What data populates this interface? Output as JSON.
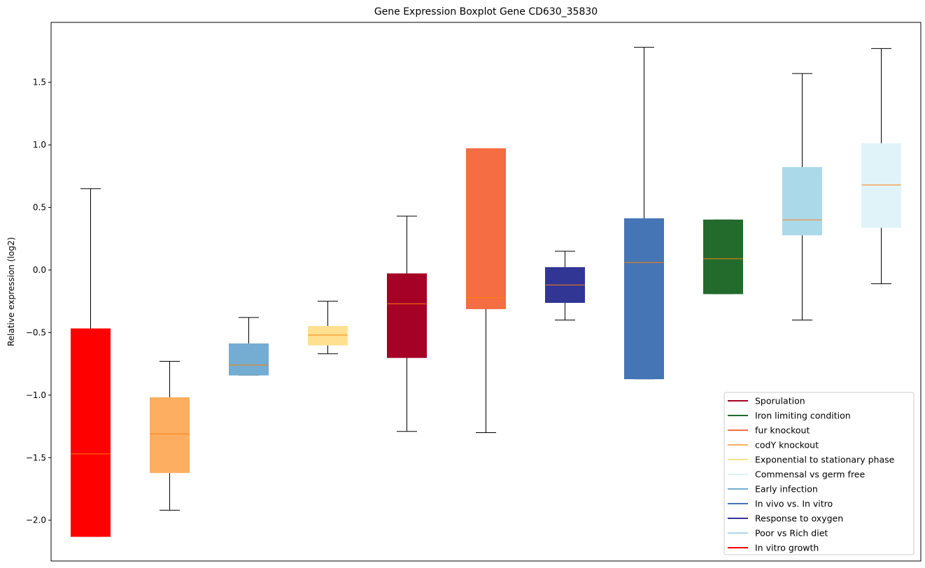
{
  "chart_data": {
    "type": "box",
    "title": "Gene Expression Boxplot Gene CD630_35830",
    "xlabel": "",
    "ylabel": "Relative expression (log2)",
    "ylim": [
      -2.326,
      1.979
    ],
    "yticks": [
      -2.0,
      -1.5,
      -1.0,
      -0.5,
      0.0,
      0.5,
      1.0,
      1.5
    ],
    "ytick_labels": [
      "−2.0",
      "−1.5",
      "−1.0",
      "−0.5",
      "0.0",
      "0.5",
      "1.0",
      "1.5"
    ],
    "grid": false,
    "median_color": "#ff7f0e",
    "legend_placement": "lower-right",
    "series": [
      {
        "name": "In vitro growth",
        "color": "#ff0000",
        "whislo": -2.13,
        "q1": -2.13,
        "med": -1.47,
        "q3": -0.47,
        "whishi": 0.65
      },
      {
        "name": "codY knockout",
        "color": "#fdae61",
        "whislo": -1.92,
        "q1": -1.62,
        "med": -1.31,
        "q3": -1.02,
        "whishi": -0.73
      },
      {
        "name": "Early infection",
        "color": "#74add1",
        "whislo": -0.84,
        "q1": -0.84,
        "med": -0.76,
        "q3": -0.59,
        "whishi": -0.38
      },
      {
        "name": "Exponential to stationary phase",
        "color": "#fee090",
        "whislo": -0.67,
        "q1": -0.6,
        "med": -0.52,
        "q3": -0.45,
        "whishi": -0.25
      },
      {
        "name": "Sporulation",
        "color": "#a50026",
        "whislo": -1.29,
        "q1": -0.7,
        "med": -0.27,
        "q3": -0.03,
        "whishi": 0.43
      },
      {
        "name": "fur knockout",
        "color": "#f46d43",
        "whislo": -1.3,
        "q1": -0.31,
        "med": -0.22,
        "q3": 0.97,
        "whishi": 0.97
      },
      {
        "name": "Response to oxygen",
        "color": "#313695",
        "whislo": -0.4,
        "q1": -0.26,
        "med": -0.12,
        "q3": 0.02,
        "whishi": 0.15
      },
      {
        "name": "In vivo vs. In vitro",
        "color": "#4575b4",
        "whislo": -0.87,
        "q1": -0.87,
        "med": 0.06,
        "q3": 0.41,
        "whishi": 1.78
      },
      {
        "name": "Iron limiting condition",
        "color": "#226b2d",
        "whislo": -0.19,
        "q1": -0.19,
        "med": 0.09,
        "q3": 0.4,
        "whishi": 0.4
      },
      {
        "name": "Poor vs Rich diet",
        "color": "#abd9e9",
        "whislo": -0.4,
        "q1": 0.28,
        "med": 0.4,
        "q3": 0.82,
        "whishi": 1.57
      },
      {
        "name": "Commensal vs germ free",
        "color": "#e0f3f8",
        "whislo": -0.11,
        "q1": 0.34,
        "med": 0.68,
        "q3": 1.01,
        "whishi": 1.77
      }
    ],
    "legend": [
      {
        "label": "Sporulation",
        "color": "#a50026"
      },
      {
        "label": "Iron limiting condition",
        "color": "#226b2d"
      },
      {
        "label": "fur knockout",
        "color": "#f46d43"
      },
      {
        "label": "codY knockout",
        "color": "#fdae61"
      },
      {
        "label": "Exponential to stationary phase",
        "color": "#fee090"
      },
      {
        "label": "Commensal vs germ free",
        "color": "#e0f3f8"
      },
      {
        "label": "Early infection",
        "color": "#74add1"
      },
      {
        "label": "In vivo vs. In vitro",
        "color": "#4575b4"
      },
      {
        "label": "Response to oxygen",
        "color": "#313695"
      },
      {
        "label": "Poor vs Rich diet",
        "color": "#abd9e9"
      },
      {
        "label": "In vitro growth",
        "color": "#ff0000"
      }
    ]
  }
}
